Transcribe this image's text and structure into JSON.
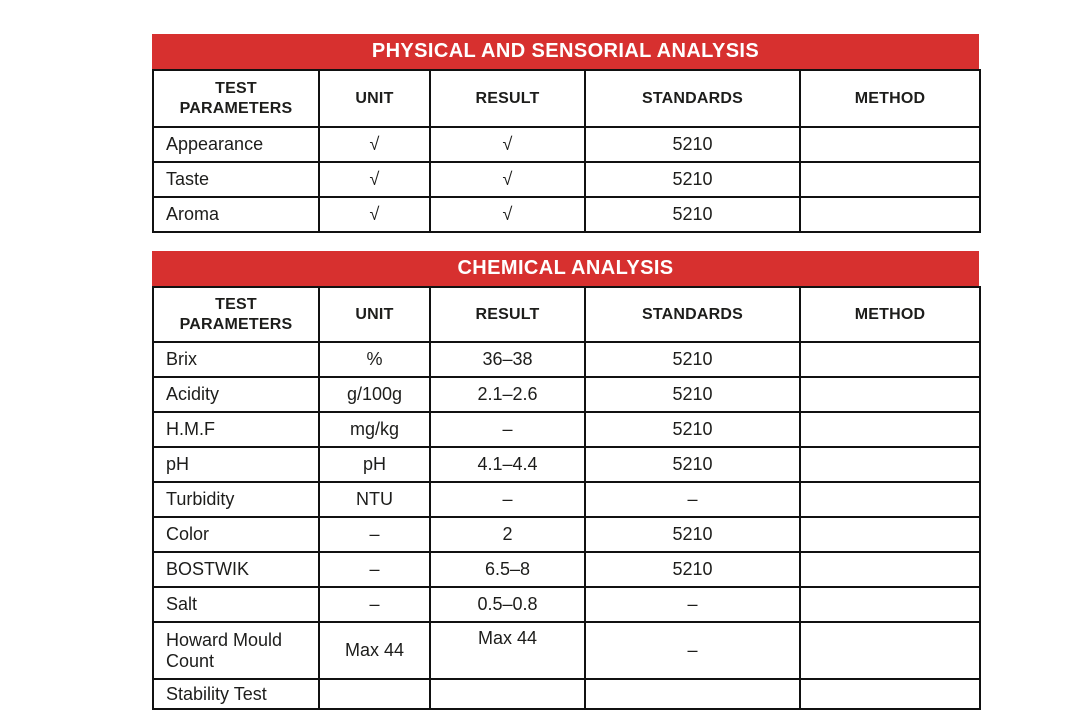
{
  "colors": {
    "banner_red": "#d7302f",
    "banner_text": "#ffffff",
    "border": "#111111",
    "text": "#1d1d1b",
    "background": "#ffffff"
  },
  "tables": [
    {
      "title": "PHYSICAL AND SENSORIAL ANALYSIS",
      "headers": [
        "TEST\nPARAMETERS",
        "UNIT",
        "RESULT",
        "STANDARDS",
        "METHOD"
      ],
      "rows": [
        [
          "Appearance",
          "√",
          "√",
          "5210",
          ""
        ],
        [
          "Taste",
          "√",
          "√",
          "5210",
          ""
        ],
        [
          "Aroma",
          "√",
          "√",
          "5210",
          ""
        ]
      ]
    },
    {
      "title": "CHEMICAL ANALYSIS",
      "headers": [
        "TEST\nPARAMETERS",
        "UNIT",
        "RESULT",
        "STANDARDS",
        "METHOD"
      ],
      "rows": [
        [
          "Brix",
          "%",
          "36–38",
          "5210",
          ""
        ],
        [
          "Acidity",
          "g/100g",
          "2.1–2.6",
          "5210",
          ""
        ],
        [
          "H.M.F",
          "mg/kg",
          "–",
          "5210",
          ""
        ],
        [
          "pH",
          "pH",
          "4.1–4.4",
          "5210",
          ""
        ],
        [
          "Turbidity",
          "NTU",
          "–",
          "–",
          ""
        ],
        [
          "Color",
          "–",
          "2",
          "5210",
          ""
        ],
        [
          "BOSTWIK",
          "–",
          "6.5–8",
          "5210",
          ""
        ],
        [
          "Salt",
          "–",
          "0.5–0.8",
          "–",
          ""
        ],
        [
          "Howard Mould Count",
          "Max 44",
          "Max 44",
          "–",
          ""
        ],
        [
          "Stability Test",
          "",
          "",
          "",
          ""
        ]
      ]
    }
  ]
}
